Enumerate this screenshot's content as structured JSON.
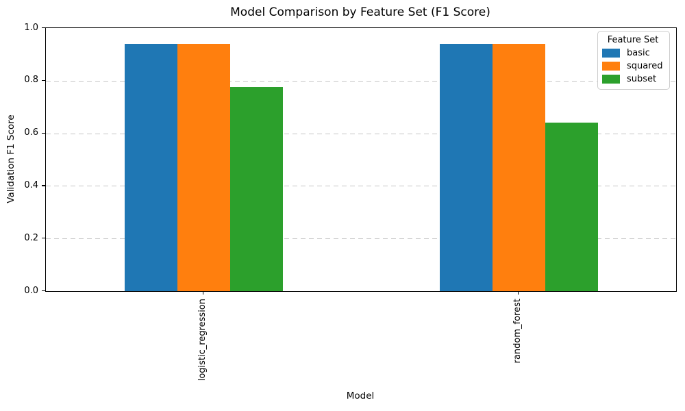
{
  "chart_data": {
    "type": "bar",
    "title": "Model Comparison by Feature Set (F1 Score)",
    "xlabel": "Model",
    "ylabel": "Validation F1 Score",
    "categories": [
      "logistic_regression",
      "random_forest"
    ],
    "series": [
      {
        "name": "basic",
        "color": "#1f77b4",
        "values": [
          0.94,
          0.94
        ]
      },
      {
        "name": "squared",
        "color": "#ff7f0e",
        "values": [
          0.94,
          0.94
        ]
      },
      {
        "name": "subset",
        "color": "#2ca02c",
        "values": [
          0.775,
          0.64
        ]
      }
    ],
    "ylim": [
      0.0,
      1.0
    ],
    "yticks": [
      0.0,
      0.2,
      0.4,
      0.6,
      0.8,
      1.0
    ],
    "ytick_labels": [
      "0.0",
      "0.2",
      "0.4",
      "0.6",
      "0.8",
      "1.0"
    ],
    "grid": "horizontal-dashed",
    "gridline_color": "#c4c4c4",
    "xtick_rotation_deg": 90,
    "legend": {
      "title": "Feature Set",
      "position": "upper-right"
    }
  }
}
